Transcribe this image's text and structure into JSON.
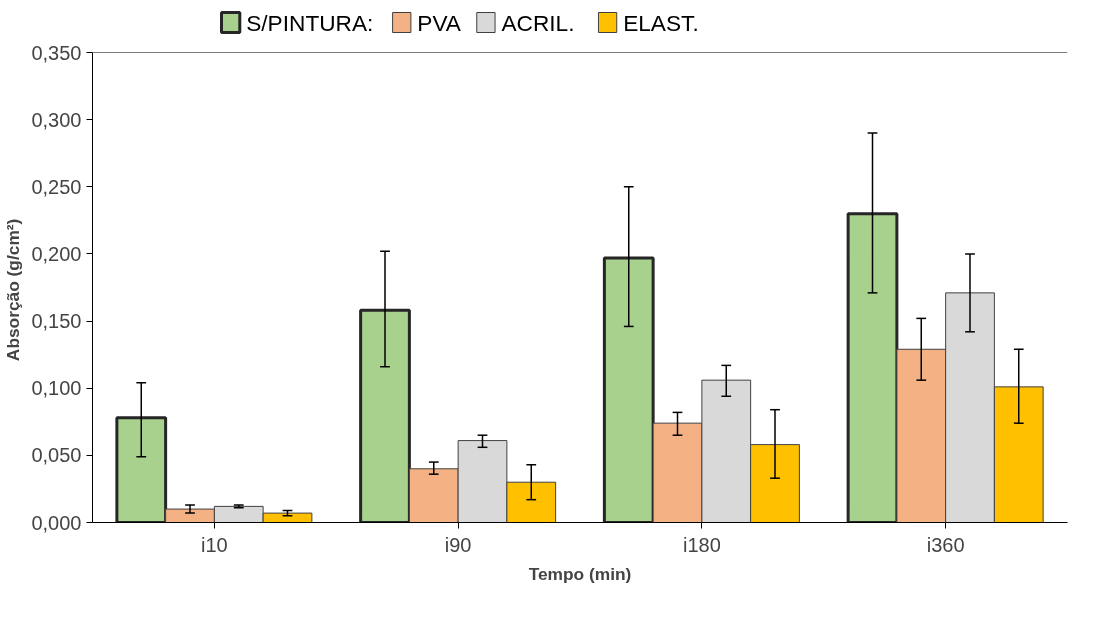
{
  "chart_data": {
    "type": "bar",
    "xlabel": "Tempo (min)",
    "ylabel": "Absorção  (g/cm²)",
    "categories": [
      "i10",
      "i90",
      "i180",
      "i360"
    ],
    "series": [
      {
        "name": "S/PINTURA:",
        "color": "#a9d18e",
        "values": [
          0.078,
          0.158,
          0.197,
          0.23
        ],
        "errors": [
          [
            0.049,
            0.104
          ],
          [
            0.116,
            0.202
          ],
          [
            0.146,
            0.25
          ],
          [
            0.171,
            0.29
          ]
        ]
      },
      {
        "name": "PVA",
        "color": "#f4b183",
        "values": [
          0.01,
          0.04,
          0.074,
          0.129
        ],
        "errors": [
          [
            0.007,
            0.013
          ],
          [
            0.036,
            0.045
          ],
          [
            0.065,
            0.082
          ],
          [
            0.106,
            0.152
          ]
        ]
      },
      {
        "name": "ACRIL.",
        "color": "#d9d9d9",
        "values": [
          0.012,
          0.061,
          0.106,
          0.171
        ],
        "errors": [
          [
            0.011,
            0.013
          ],
          [
            0.056,
            0.065
          ],
          [
            0.094,
            0.117
          ],
          [
            0.142,
            0.2
          ]
        ]
      },
      {
        "name": "ELAST.",
        "color": "#ffc000",
        "values": [
          0.007,
          0.03,
          0.058,
          0.101
        ],
        "errors": [
          [
            0.005,
            0.009
          ],
          [
            0.017,
            0.043
          ],
          [
            0.033,
            0.084
          ],
          [
            0.074,
            0.129
          ]
        ]
      }
    ],
    "ylim": [
      0,
      0.35
    ],
    "yticks": [
      {
        "value": 0,
        "label": "0,000"
      },
      {
        "value": 0.05,
        "label": "0,050"
      },
      {
        "value": 0.1,
        "label": "0,100"
      },
      {
        "value": 0.15,
        "label": "0,150"
      },
      {
        "value": 0.2,
        "label": "0,200"
      },
      {
        "value": 0.25,
        "label": "0,250"
      },
      {
        "value": 0.3,
        "label": "0,300"
      },
      {
        "value": 0.35,
        "label": "0,350"
      }
    ],
    "legend": "top left",
    "grid": false
  }
}
